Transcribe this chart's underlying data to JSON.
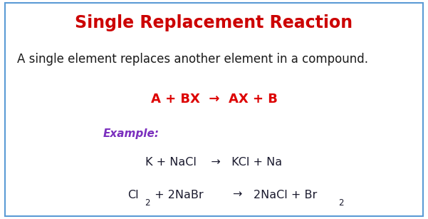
{
  "title": "Single Replacement Reaction",
  "title_color": "#cc0000",
  "title_fontsize": 17,
  "description": "A single element replaces another element in a compound.",
  "description_color": "#1a1a1a",
  "description_fontsize": 12,
  "general_eq": "A + BX  →  AX + B",
  "general_eq_color": "#dd0000",
  "general_eq_fontsize": 13,
  "example_label": "Example:",
  "example_color": "#7b2fbe",
  "example_fontsize": 11,
  "example_text_color": "#1a1a2e",
  "example_fontsize2": 11.5,
  "bg_color": "#ffffff",
  "border_color": "#5b9bd5",
  "border_linewidth": 1.5,
  "fig_width": 6.01,
  "fig_height": 3.07,
  "dpi": 100
}
